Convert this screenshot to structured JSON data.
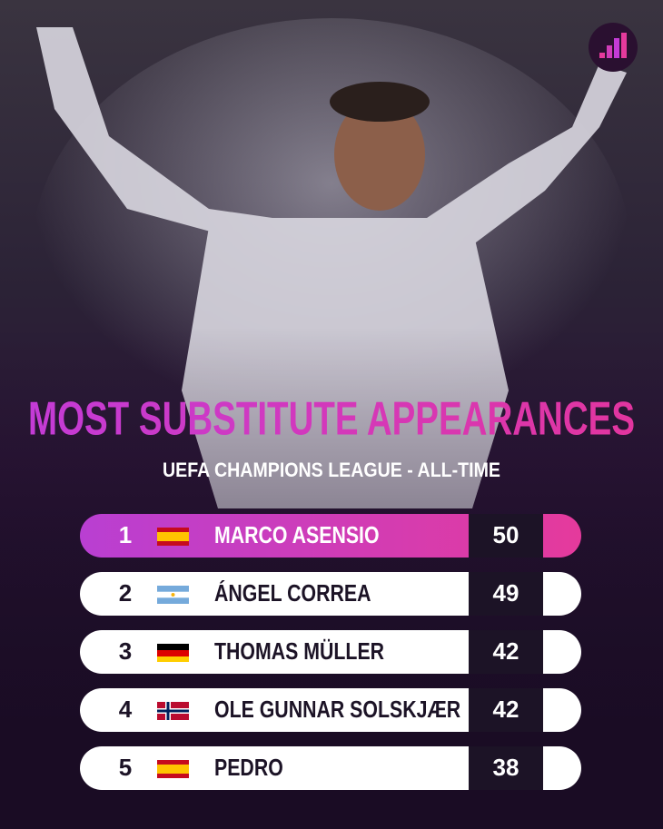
{
  "title": "MOST SUBSTITUTE APPEARANCES",
  "subtitle": "UEFA CHAMPIONS LEAGUE - ALL-TIME",
  "rows": [
    {
      "rank": "1",
      "name": "MARCO ASENSIO",
      "value": "50"
    },
    {
      "rank": "2",
      "name": "ÁNGEL CORREA",
      "value": "49"
    },
    {
      "rank": "3",
      "name": "THOMAS MÜLLER",
      "value": "42"
    },
    {
      "rank": "4",
      "name": "OLE GUNNAR SOLSKJÆR",
      "value": "42"
    },
    {
      "rank": "5",
      "name": "PEDRO",
      "value": "38"
    }
  ]
}
